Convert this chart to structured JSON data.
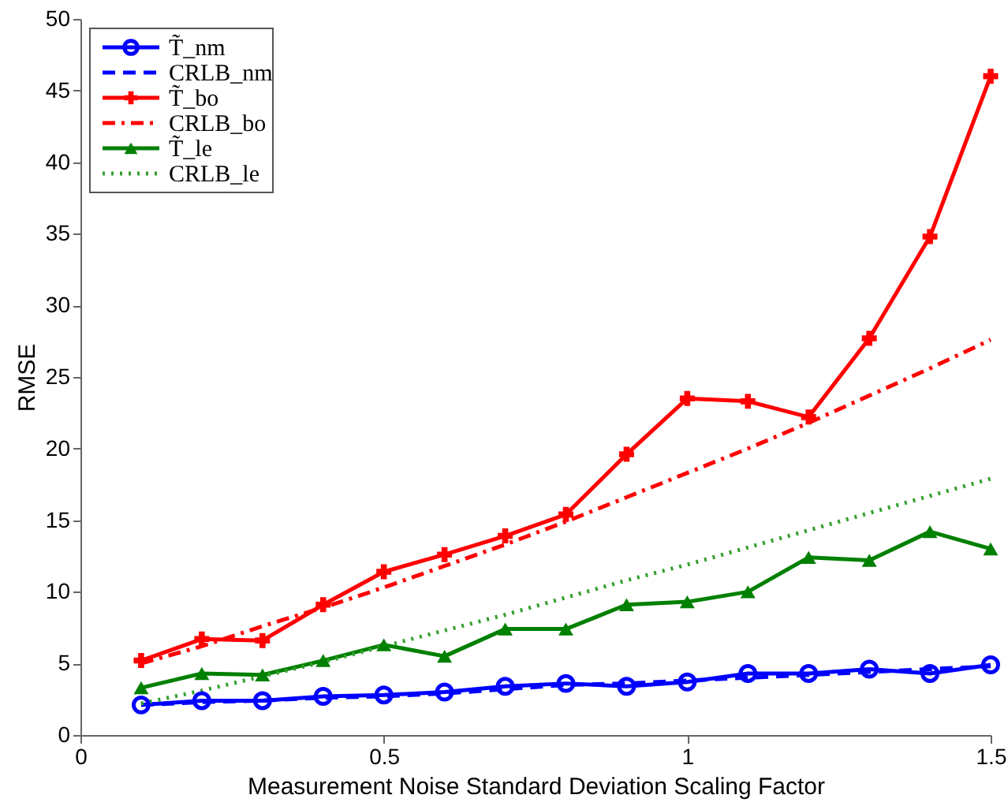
{
  "chart_data": {
    "type": "line",
    "xlabel": "Measurement Noise Standard Deviation Scaling Factor",
    "ylabel": "RMSE",
    "x": [
      0.1,
      0.2,
      0.3,
      0.4,
      0.5,
      0.6,
      0.7,
      0.8,
      0.9,
      1.0,
      1.1,
      1.2,
      1.3,
      1.4,
      1.5
    ],
    "series": [
      {
        "name": "T̃_nm",
        "color": "#0000ff",
        "line_style": "solid",
        "marker": "circle",
        "values": [
          2.1,
          2.4,
          2.4,
          2.7,
          2.8,
          3.0,
          3.4,
          3.6,
          3.4,
          3.7,
          4.3,
          4.3,
          4.6,
          4.3,
          4.9
        ]
      },
      {
        "name": "CRLB_nm",
        "color": "#0000ff",
        "line_style": "dashed",
        "marker": "none",
        "values": [
          2.1,
          2.3,
          2.4,
          2.6,
          2.7,
          2.9,
          3.2,
          3.5,
          3.6,
          3.8,
          4.0,
          4.2,
          4.4,
          4.6,
          4.8
        ]
      },
      {
        "name": "T̃_bo",
        "color": "#ff0000",
        "line_style": "solid",
        "marker": "cross",
        "values": [
          5.2,
          6.7,
          6.6,
          9.1,
          11.4,
          12.6,
          13.9,
          15.4,
          19.6,
          23.5,
          23.3,
          22.2,
          27.7,
          34.8,
          46.0
        ]
      },
      {
        "name": "CRLB_bo",
        "color": "#ff0000",
        "line_style": "dashdot",
        "marker": "none",
        "values": [
          5.0,
          6.2,
          7.6,
          8.9,
          10.3,
          11.8,
          13.3,
          14.9,
          16.6,
          18.3,
          20.0,
          21.8,
          23.7,
          25.6,
          27.6
        ]
      },
      {
        "name": "T̃_le",
        "color": "#008000",
        "line_style": "solid",
        "marker": "triangle",
        "values": [
          3.3,
          4.3,
          4.2,
          5.2,
          6.3,
          5.5,
          7.4,
          7.4,
          9.1,
          9.3,
          10.0,
          12.4,
          12.2,
          14.2,
          13.0
        ]
      },
      {
        "name": "CRLB_le",
        "color": "#33a02c",
        "line_style": "dotted",
        "marker": "none",
        "values": [
          2.2,
          3.1,
          4.1,
          5.1,
          6.2,
          7.3,
          8.4,
          9.6,
          10.8,
          11.9,
          13.1,
          14.3,
          15.5,
          16.7,
          17.9
        ]
      }
    ],
    "xlim": [
      0,
      1.5
    ],
    "xticks": [
      0,
      0.5,
      1,
      1.5
    ],
    "ylim": [
      0,
      50
    ],
    "yticks": [
      0,
      5,
      10,
      15,
      20,
      25,
      30,
      35,
      40,
      45,
      50
    ],
    "grid": false,
    "legend": "top left"
  }
}
